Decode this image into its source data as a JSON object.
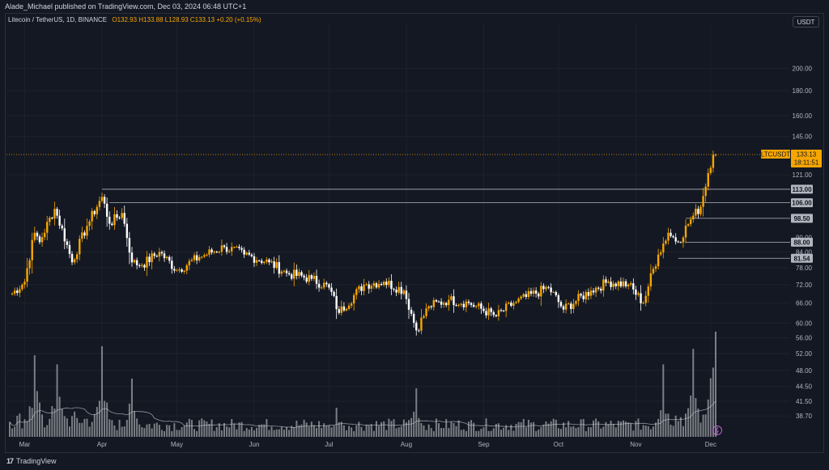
{
  "header": {
    "published_by": "Alade_Michael published on TradingView.com, Dec 03, 2024 06:48 UTC+1"
  },
  "legend": {
    "symbol": "Litecoin / TetherUS, 1D, BINANCE",
    "ohlc": "O132.93 H133.88 L128.93 C133.13 +0.20 (+0.15%)"
  },
  "currency_button": "USDT",
  "footer": {
    "brand": "TradingView"
  },
  "colors": {
    "background": "#131722",
    "bull": "#f7a600",
    "bear": "#ffffff",
    "volume": "#9ea0a6",
    "level_line": "#b2b5be",
    "price_tag": "#f7a600"
  },
  "chart_data": {
    "type": "candlestick",
    "x_axis": {
      "labels": [
        "Mar",
        "Apr",
        "May",
        "Jun",
        "Jul",
        "Aug",
        "Sep",
        "Oct",
        "Nov",
        "Dec"
      ]
    },
    "y_axis": {
      "scale": "log",
      "ticks": [
        200,
        180,
        160,
        145,
        121,
        84,
        78,
        72,
        66,
        60,
        56,
        52,
        48,
        44.5,
        41.5,
        38.7
      ],
      "range": [
        37,
        230
      ]
    },
    "price_tag": {
      "label": "LTCUSDT",
      "value": "133.13",
      "countdown": "18:11:51",
      "price": 133.13
    },
    "horizontal_levels": [
      {
        "label": "113.00",
        "price": 113.0
      },
      {
        "label": "106.00",
        "price": 106.0
      },
      {
        "label": "98.50",
        "price": 98.5
      },
      {
        "label": "88.00",
        "price": 88.0
      },
      {
        "label": "81.54",
        "price": 81.54
      }
    ],
    "extra_tick_labels": [
      "90.00"
    ],
    "price_anchors": [
      {
        "date": "2024-02-25",
        "close": 69
      },
      {
        "date": "2024-03-01",
        "close": 73
      },
      {
        "date": "2024-03-05",
        "close": 92
      },
      {
        "date": "2024-03-07",
        "close": 88
      },
      {
        "date": "2024-03-13",
        "close": 103
      },
      {
        "date": "2024-03-20",
        "close": 80
      },
      {
        "date": "2024-03-26",
        "close": 95
      },
      {
        "date": "2024-04-01",
        "close": 109
      },
      {
        "date": "2024-04-04",
        "close": 96
      },
      {
        "date": "2024-04-09",
        "close": 101
      },
      {
        "date": "2024-04-13",
        "close": 80
      },
      {
        "date": "2024-04-17",
        "close": 79
      },
      {
        "date": "2024-04-24",
        "close": 84
      },
      {
        "date": "2024-05-01",
        "close": 77
      },
      {
        "date": "2024-05-10",
        "close": 82
      },
      {
        "date": "2024-05-20",
        "close": 86
      },
      {
        "date": "2024-05-28",
        "close": 83
      },
      {
        "date": "2024-06-07",
        "close": 80
      },
      {
        "date": "2024-06-14",
        "close": 76
      },
      {
        "date": "2024-06-24",
        "close": 74
      },
      {
        "date": "2024-07-01",
        "close": 71
      },
      {
        "date": "2024-07-05",
        "close": 63
      },
      {
        "date": "2024-07-15",
        "close": 72
      },
      {
        "date": "2024-07-23",
        "close": 73
      },
      {
        "date": "2024-07-31",
        "close": 70
      },
      {
        "date": "2024-08-05",
        "close": 58
      },
      {
        "date": "2024-08-10",
        "close": 65
      },
      {
        "date": "2024-08-18",
        "close": 67
      },
      {
        "date": "2024-08-26",
        "close": 66
      },
      {
        "date": "2024-09-06",
        "close": 62
      },
      {
        "date": "2024-09-13",
        "close": 66
      },
      {
        "date": "2024-09-27",
        "close": 71
      },
      {
        "date": "2024-10-03",
        "close": 64
      },
      {
        "date": "2024-10-14",
        "close": 70
      },
      {
        "date": "2024-10-21",
        "close": 73
      },
      {
        "date": "2024-10-29",
        "close": 72
      },
      {
        "date": "2024-11-04",
        "close": 66
      },
      {
        "date": "2024-11-10",
        "close": 83
      },
      {
        "date": "2024-11-14",
        "close": 92
      },
      {
        "date": "2024-11-18",
        "close": 88
      },
      {
        "date": "2024-11-23",
        "close": 98
      },
      {
        "date": "2024-11-27",
        "close": 104
      },
      {
        "date": "2024-11-30",
        "close": 122
      },
      {
        "date": "2024-12-01",
        "close": 125
      },
      {
        "date": "2024-12-02",
        "close": 132.93
      },
      {
        "date": "2024-12-03",
        "close": 133.13
      }
    ],
    "volume_baseline": 0.22,
    "volume_spikes": [
      {
        "date": "2024-03-05",
        "level": 0.9
      },
      {
        "date": "2024-03-14",
        "level": 0.8
      },
      {
        "date": "2024-04-01",
        "level": 1.0
      },
      {
        "date": "2024-04-13",
        "level": 0.9
      },
      {
        "date": "2024-08-05",
        "level": 0.75
      },
      {
        "date": "2024-07-04",
        "level": 0.45
      },
      {
        "date": "2024-11-12",
        "level": 0.7
      },
      {
        "date": "2024-11-24",
        "level": 0.85
      },
      {
        "date": "2024-12-03",
        "level": 1.4
      }
    ]
  }
}
